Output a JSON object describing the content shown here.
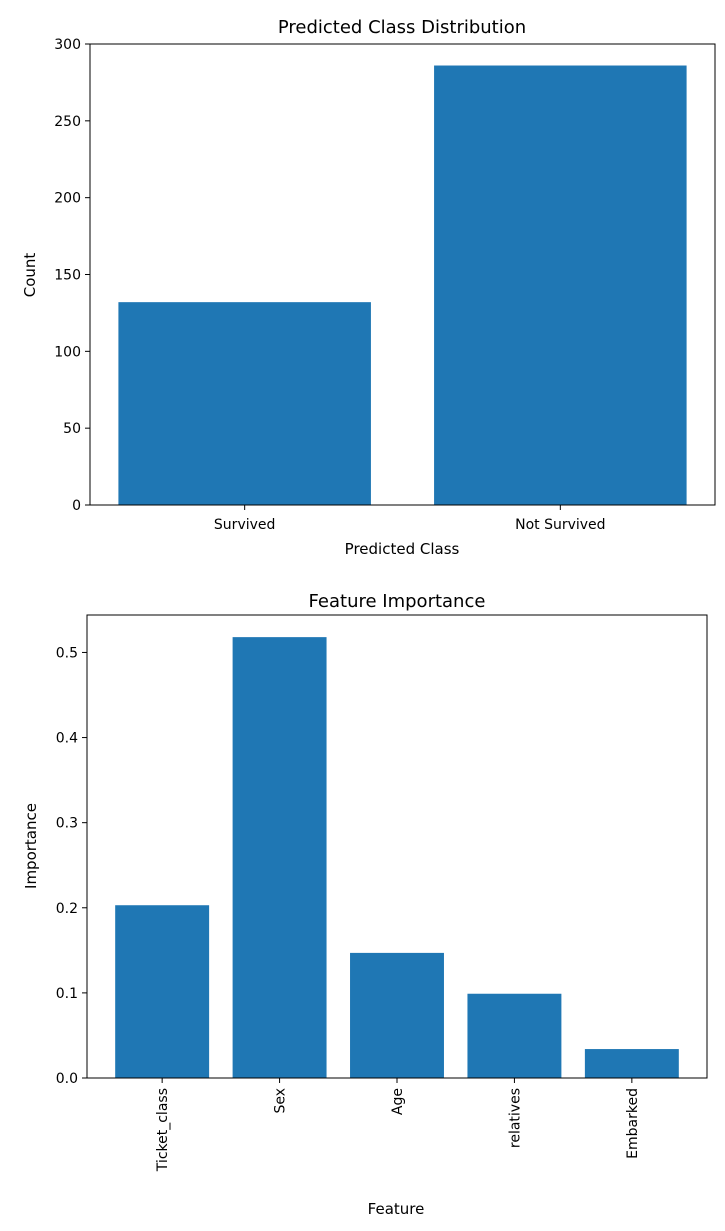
{
  "chart_data": [
    {
      "type": "bar",
      "title": "Predicted Class Distribution",
      "xlabel": "Predicted Class",
      "ylabel": "Count",
      "categories": [
        "Survived",
        "Not Survived"
      ],
      "values": [
        132,
        286
      ],
      "ylim": [
        0,
        300
      ],
      "yticks": [
        0,
        50,
        100,
        150,
        200,
        250,
        300
      ],
      "ytick_labels": [
        "0",
        "50",
        "100",
        "150",
        "200",
        "250",
        "300"
      ],
      "color": "#1f77b4",
      "grid": false,
      "xtick_rotation": 0
    },
    {
      "type": "bar",
      "title": "Feature Importance",
      "xlabel": "Feature",
      "ylabel": "Importance",
      "categories": [
        "Ticket_class",
        "Sex",
        "Age",
        "relatives",
        "Embarked"
      ],
      "values": [
        0.203,
        0.518,
        0.147,
        0.099,
        0.034
      ],
      "ylim": [
        0,
        0.544
      ],
      "yticks": [
        0,
        0.1,
        0.2,
        0.3,
        0.4,
        0.5
      ],
      "ytick_labels": [
        "0.0",
        "0.1",
        "0.2",
        "0.3",
        "0.4",
        "0.5"
      ],
      "color": "#1f77b4",
      "grid": false,
      "xtick_rotation": -90
    }
  ]
}
